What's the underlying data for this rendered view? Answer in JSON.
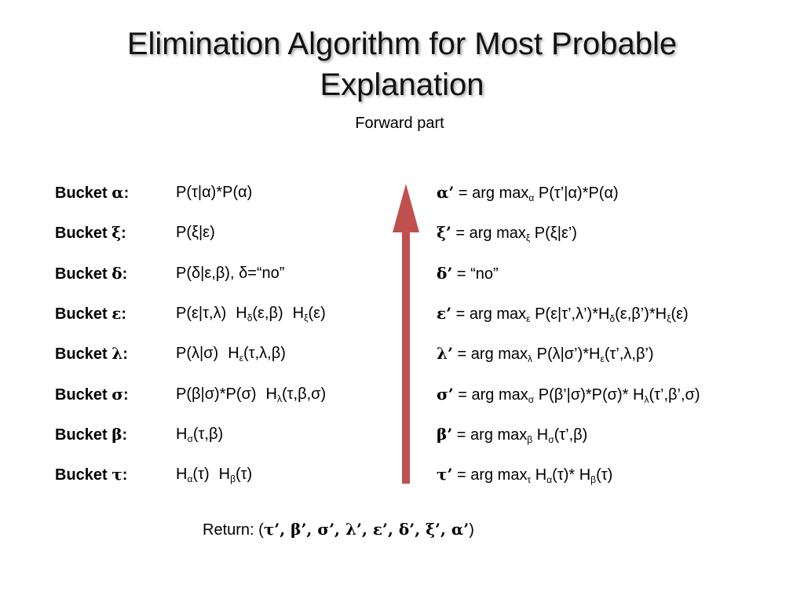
{
  "title_line1": "Elimination Algorithm for Most Probable",
  "title_line2": "Explanation",
  "subtitle": "Forward part",
  "rows": [
    {
      "bucket": "α",
      "factors": [
        "P(τ|α)*P(α)"
      ],
      "result_var": "α’",
      "result_prefix": " = arg max",
      "result_sub": "α",
      "result_rest": " P(τ’|α)*P(α)"
    },
    {
      "bucket": "ξ",
      "factors": [
        "P(ξ|ε)"
      ],
      "result_var": "ξ’",
      "result_prefix": " = arg max",
      "result_sub": "ξ",
      "result_rest": " P(ξ|ε’)"
    },
    {
      "bucket": "δ",
      "factors": [
        "P(δ|ε,β), δ=“no”"
      ],
      "result_var": "δ’",
      "result_prefix": " = “no”",
      "result_sub": "",
      "result_rest": ""
    },
    {
      "bucket": "ε",
      "factors": [
        "P(ε|τ,λ)",
        "H_δ(ε,β)",
        "H_ξ(ε)"
      ],
      "result_var": "ε’",
      "result_prefix": " = arg max",
      "result_sub": "ε",
      "result_rest": " P(ε|τ’,λ’)*H_δ(ε,β’)*H_ξ(ε)"
    },
    {
      "bucket": "λ",
      "factors": [
        "P(λ|σ)",
        "H_ε(τ,λ,β)"
      ],
      "result_var": "λ’",
      "result_prefix": " = arg max",
      "result_sub": "λ",
      "result_rest": " P(λ|σ’)*H_ε(τ’,λ,β’)"
    },
    {
      "bucket": "σ",
      "factors": [
        "P(β|σ)*P(σ)",
        "H_λ(τ,β,σ)"
      ],
      "result_var": "σ’",
      "result_prefix": " = arg max",
      "result_sub": "σ",
      "result_rest": " P(β’|σ)*P(σ)* H_λ(τ’,β’,σ)"
    },
    {
      "bucket": "β",
      "factors": [
        "H_σ(τ,β)"
      ],
      "result_var": "β’",
      "result_prefix": " = arg max",
      "result_sub": "β",
      "result_rest": " H_σ(τ’,β)"
    },
    {
      "bucket": "τ",
      "factors": [
        "H_α(τ)",
        "H_β(τ)"
      ],
      "result_var": "τ’",
      "result_prefix": " = arg max",
      "result_sub": "τ",
      "result_rest": " H_α(τ)* H_β(τ)"
    }
  ],
  "bucket_label": "Bucket",
  "return_label": "Return: (",
  "return_values": "τ’, β’, σ’, λ’, ε’, δ’, ξ’, α’",
  "return_close": ")",
  "arrow_color": "#c0504d"
}
